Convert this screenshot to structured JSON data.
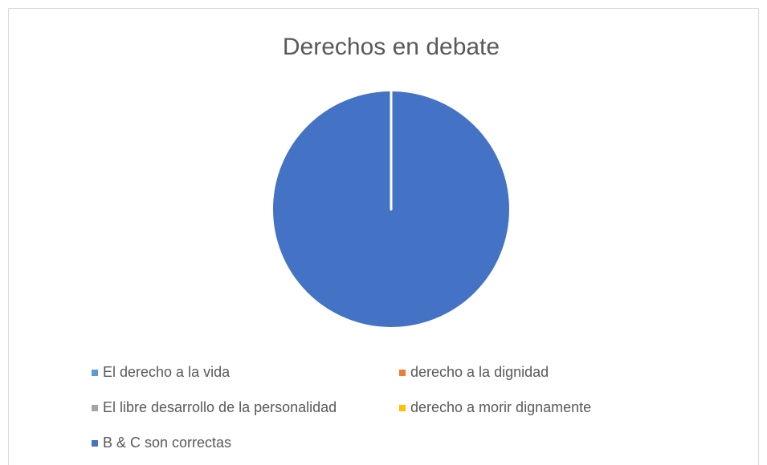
{
  "chart_data": {
    "type": "pie",
    "title": "Derechos en debate",
    "categories": [
      "El derecho a la vida",
      "derecho a la dignidad",
      "El libre desarrollo de la personalidad",
      "derecho a morir dignamente",
      "B & C son correctas"
    ],
    "values": [
      0,
      0,
      0,
      0,
      100
    ],
    "colors": [
      "#5b9bd5",
      "#ed7d31",
      "#a5a5a5",
      "#ffc000",
      "#4472c4"
    ],
    "legend": "bottom"
  }
}
